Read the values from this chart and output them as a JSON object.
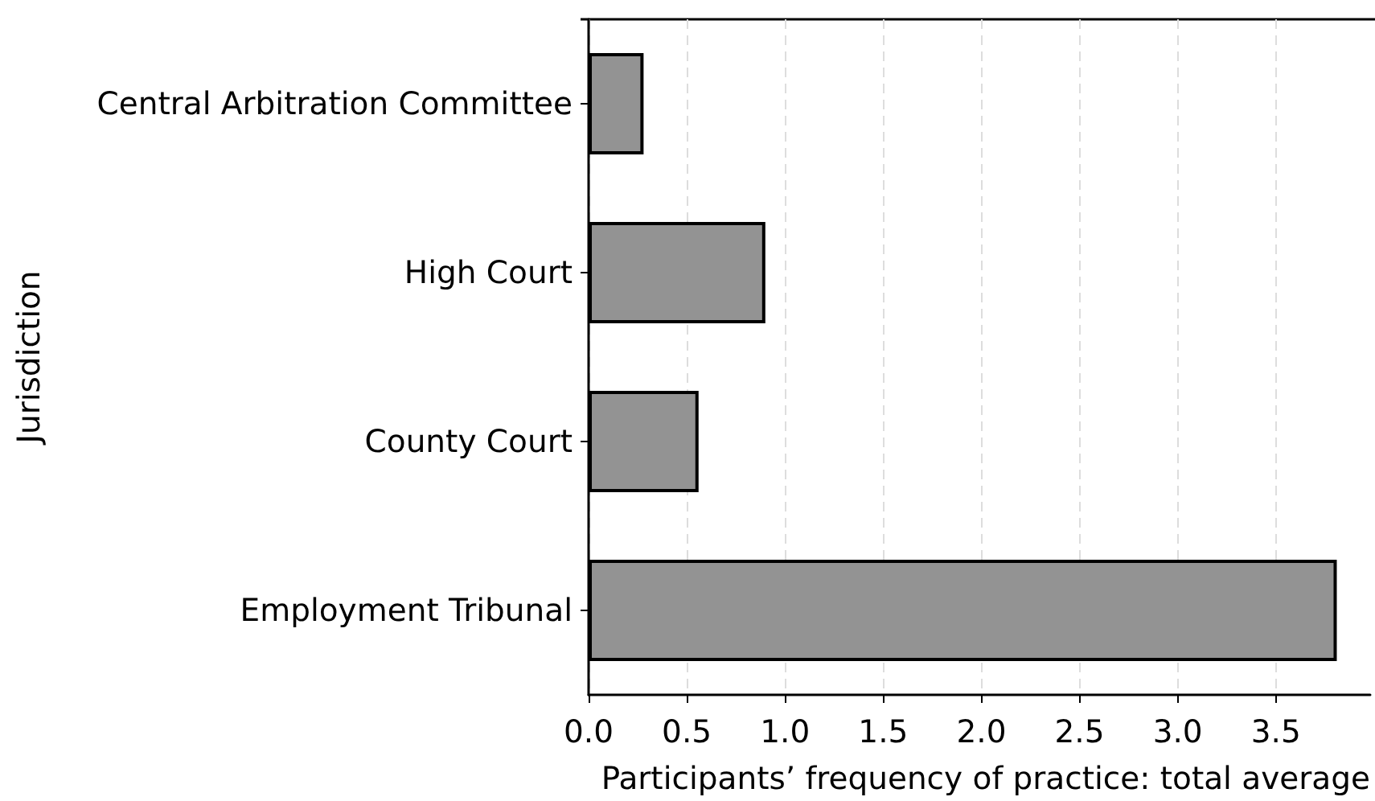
{
  "chart_data": {
    "type": "bar",
    "orientation": "horizontal",
    "xlabel": "Participants’ frequency of practice: total average",
    "ylabel": "Jurisdiction",
    "categories": [
      "Central Arbitration Committee",
      "High Court",
      "County Court",
      "Employment Tribunal"
    ],
    "values": [
      0.28,
      0.9,
      0.56,
      3.81
    ],
    "color": "#939393",
    "xlim": [
      0,
      3.98
    ],
    "xticks": [
      {
        "value": 0,
        "label": "0.0"
      },
      {
        "value": 0.5,
        "label": "0.5"
      },
      {
        "value": 1,
        "label": "1.0"
      },
      {
        "value": 1.5,
        "label": "1.5"
      },
      {
        "value": 2,
        "label": "2.0"
      },
      {
        "value": 2.5,
        "label": "2.5"
      },
      {
        "value": 3,
        "label": "3.0"
      },
      {
        "value": 3.5,
        "label": "3.5"
      }
    ],
    "grid": "x"
  }
}
